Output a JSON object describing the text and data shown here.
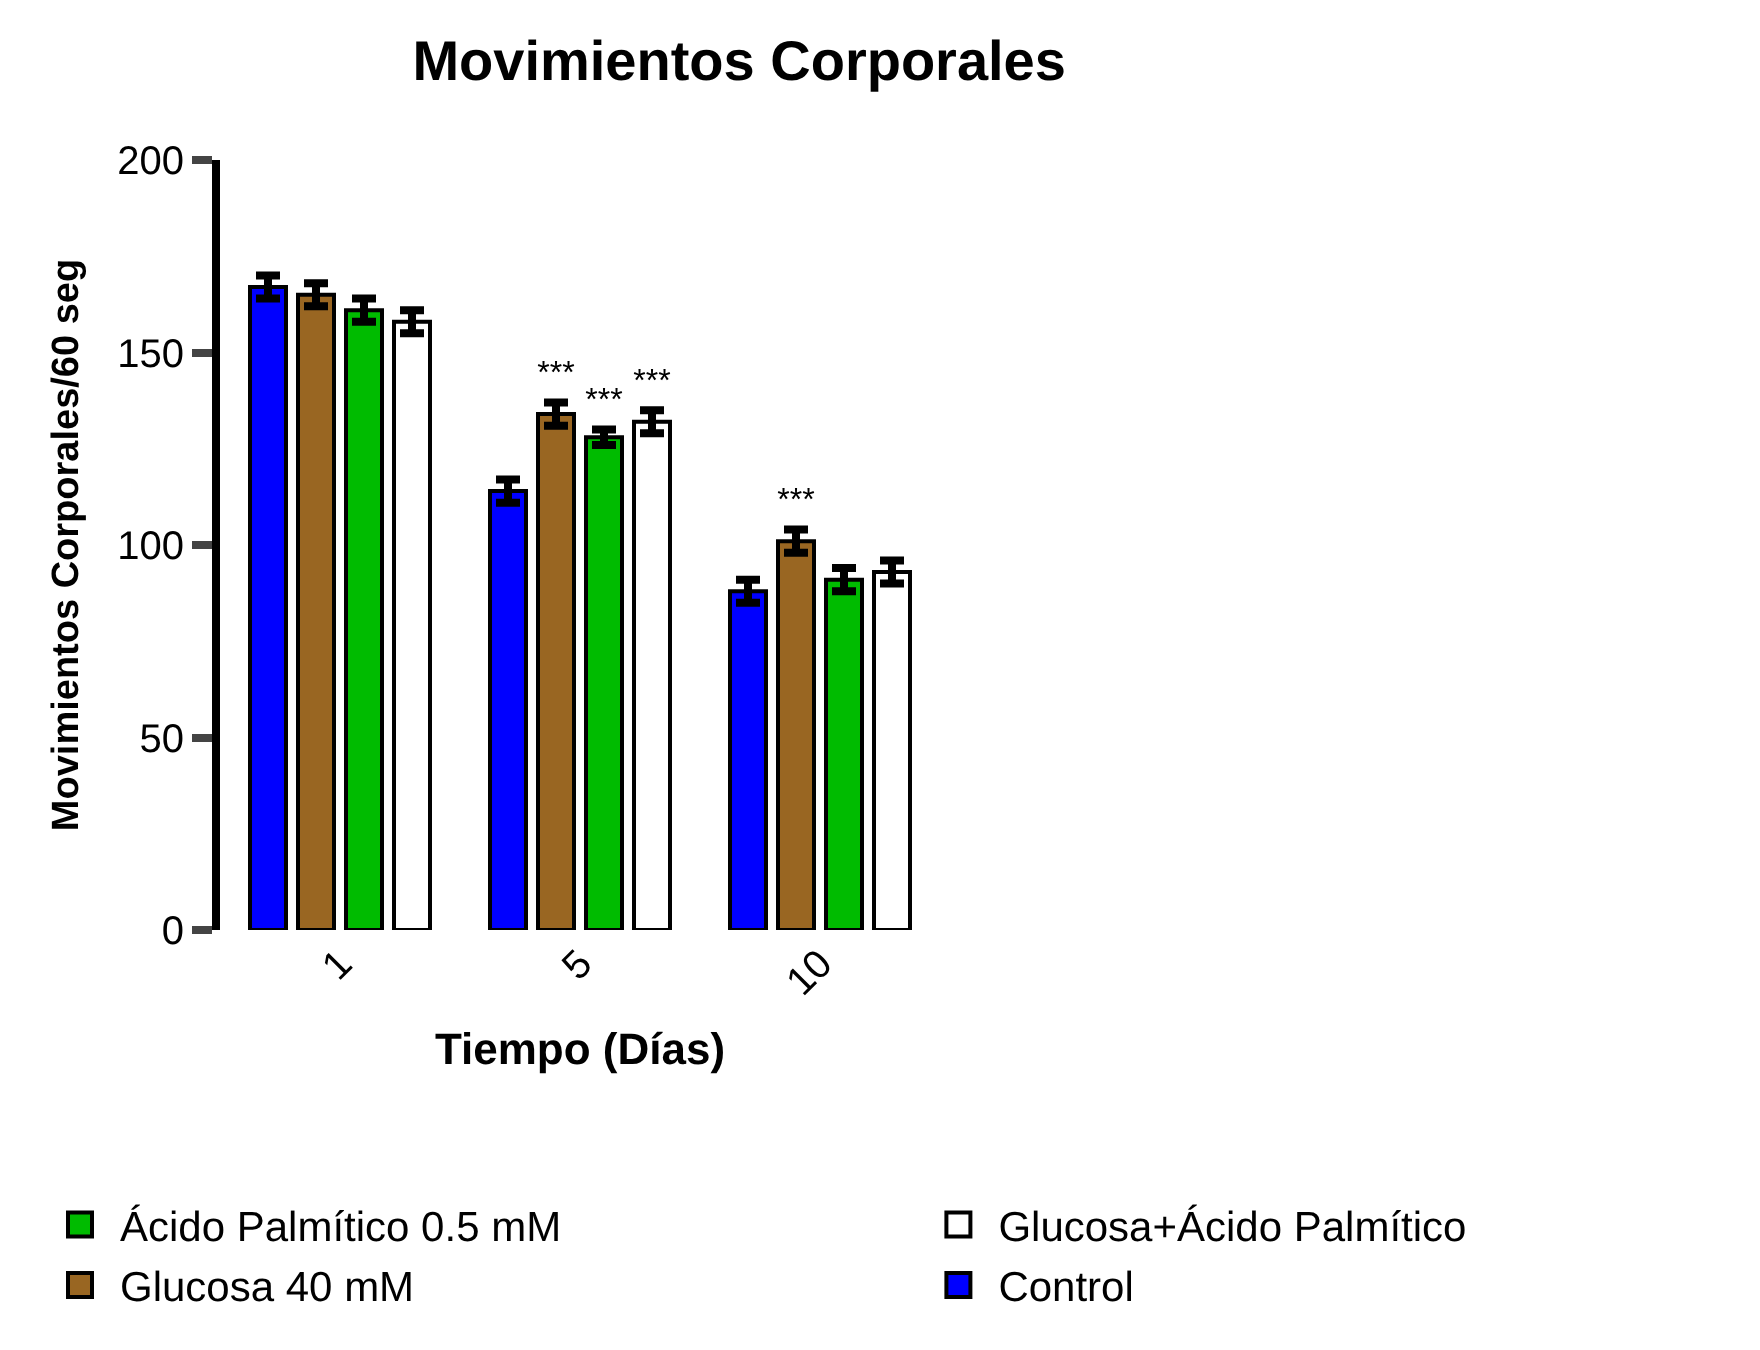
{
  "chart_data": {
    "type": "bar",
    "title": "Movimientos Corporales",
    "xlabel": "Tiempo (Días)",
    "ylabel": "Movimientos Corporales/60 seg",
    "categories": [
      "1",
      "5",
      "10"
    ],
    "series": [
      {
        "name": "Control",
        "color": "#0000ff",
        "values": [
          167,
          114,
          88
        ],
        "errors": [
          3,
          3,
          3
        ]
      },
      {
        "name": "Glucosa 40 mM",
        "color": "#996622",
        "values": [
          165,
          134,
          101
        ],
        "errors": [
          3,
          3,
          3
        ],
        "value_labels": [
          null,
          "***",
          "***"
        ]
      },
      {
        "name": "Ácido Palmítico 0.5 mM",
        "color": "#00bb00",
        "values": [
          161,
          128,
          91
        ],
        "errors": [
          3,
          2,
          3
        ],
        "value_labels": [
          null,
          "***",
          null
        ]
      },
      {
        "name": "Glucosa+Ácido Palmítico",
        "color": "#ffffff",
        "values": [
          158,
          132,
          93
        ],
        "errors": [
          3,
          3,
          3
        ],
        "value_labels": [
          null,
          "***",
          null
        ]
      }
    ],
    "ylim": [
      0,
      200
    ],
    "yticks": [
      0,
      50,
      100,
      150,
      200
    ],
    "grid": false,
    "legend": "bottom"
  }
}
